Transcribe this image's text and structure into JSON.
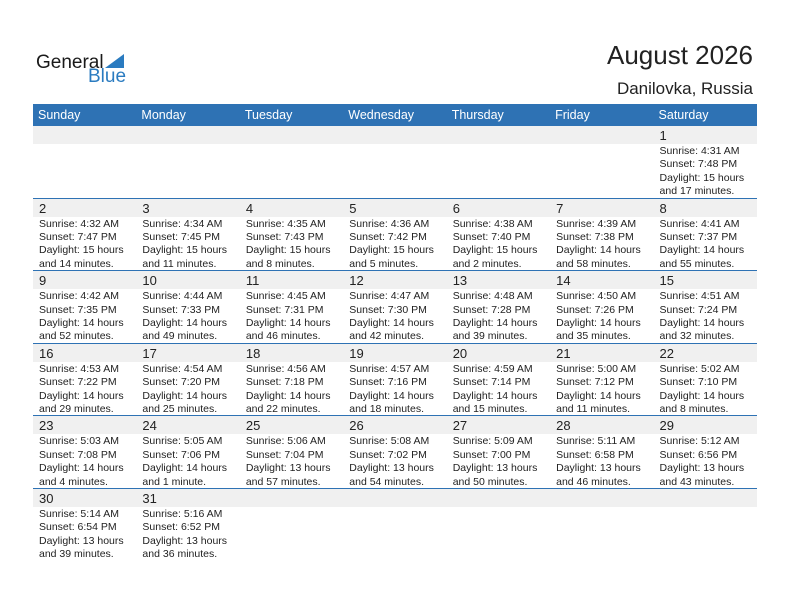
{
  "logo": {
    "general": "General",
    "blue": "Blue"
  },
  "title": "August 2026",
  "location": "Danilovka, Russia",
  "weekdays": [
    "Sunday",
    "Monday",
    "Tuesday",
    "Wednesday",
    "Thursday",
    "Friday",
    "Saturday"
  ],
  "weeks": [
    [
      null,
      null,
      null,
      null,
      null,
      null,
      {
        "day": "1",
        "sunrise": "Sunrise: 4:31 AM",
        "sunset": "Sunset: 7:48 PM",
        "daylight": "Daylight: 15 hours",
        "minutes": "and 17 minutes."
      }
    ],
    [
      {
        "day": "2",
        "sunrise": "Sunrise: 4:32 AM",
        "sunset": "Sunset: 7:47 PM",
        "daylight": "Daylight: 15 hours",
        "minutes": "and 14 minutes."
      },
      {
        "day": "3",
        "sunrise": "Sunrise: 4:34 AM",
        "sunset": "Sunset: 7:45 PM",
        "daylight": "Daylight: 15 hours",
        "minutes": "and 11 minutes."
      },
      {
        "day": "4",
        "sunrise": "Sunrise: 4:35 AM",
        "sunset": "Sunset: 7:43 PM",
        "daylight": "Daylight: 15 hours",
        "minutes": "and 8 minutes."
      },
      {
        "day": "5",
        "sunrise": "Sunrise: 4:36 AM",
        "sunset": "Sunset: 7:42 PM",
        "daylight": "Daylight: 15 hours",
        "minutes": "and 5 minutes."
      },
      {
        "day": "6",
        "sunrise": "Sunrise: 4:38 AM",
        "sunset": "Sunset: 7:40 PM",
        "daylight": "Daylight: 15 hours",
        "minutes": "and 2 minutes."
      },
      {
        "day": "7",
        "sunrise": "Sunrise: 4:39 AM",
        "sunset": "Sunset: 7:38 PM",
        "daylight": "Daylight: 14 hours",
        "minutes": "and 58 minutes."
      },
      {
        "day": "8",
        "sunrise": "Sunrise: 4:41 AM",
        "sunset": "Sunset: 7:37 PM",
        "daylight": "Daylight: 14 hours",
        "minutes": "and 55 minutes."
      }
    ],
    [
      {
        "day": "9",
        "sunrise": "Sunrise: 4:42 AM",
        "sunset": "Sunset: 7:35 PM",
        "daylight": "Daylight: 14 hours",
        "minutes": "and 52 minutes."
      },
      {
        "day": "10",
        "sunrise": "Sunrise: 4:44 AM",
        "sunset": "Sunset: 7:33 PM",
        "daylight": "Daylight: 14 hours",
        "minutes": "and 49 minutes."
      },
      {
        "day": "11",
        "sunrise": "Sunrise: 4:45 AM",
        "sunset": "Sunset: 7:31 PM",
        "daylight": "Daylight: 14 hours",
        "minutes": "and 46 minutes."
      },
      {
        "day": "12",
        "sunrise": "Sunrise: 4:47 AM",
        "sunset": "Sunset: 7:30 PM",
        "daylight": "Daylight: 14 hours",
        "minutes": "and 42 minutes."
      },
      {
        "day": "13",
        "sunrise": "Sunrise: 4:48 AM",
        "sunset": "Sunset: 7:28 PM",
        "daylight": "Daylight: 14 hours",
        "minutes": "and 39 minutes."
      },
      {
        "day": "14",
        "sunrise": "Sunrise: 4:50 AM",
        "sunset": "Sunset: 7:26 PM",
        "daylight": "Daylight: 14 hours",
        "minutes": "and 35 minutes."
      },
      {
        "day": "15",
        "sunrise": "Sunrise: 4:51 AM",
        "sunset": "Sunset: 7:24 PM",
        "daylight": "Daylight: 14 hours",
        "minutes": "and 32 minutes."
      }
    ],
    [
      {
        "day": "16",
        "sunrise": "Sunrise: 4:53 AM",
        "sunset": "Sunset: 7:22 PM",
        "daylight": "Daylight: 14 hours",
        "minutes": "and 29 minutes."
      },
      {
        "day": "17",
        "sunrise": "Sunrise: 4:54 AM",
        "sunset": "Sunset: 7:20 PM",
        "daylight": "Daylight: 14 hours",
        "minutes": "and 25 minutes."
      },
      {
        "day": "18",
        "sunrise": "Sunrise: 4:56 AM",
        "sunset": "Sunset: 7:18 PM",
        "daylight": "Daylight: 14 hours",
        "minutes": "and 22 minutes."
      },
      {
        "day": "19",
        "sunrise": "Sunrise: 4:57 AM",
        "sunset": "Sunset: 7:16 PM",
        "daylight": "Daylight: 14 hours",
        "minutes": "and 18 minutes."
      },
      {
        "day": "20",
        "sunrise": "Sunrise: 4:59 AM",
        "sunset": "Sunset: 7:14 PM",
        "daylight": "Daylight: 14 hours",
        "minutes": "and 15 minutes."
      },
      {
        "day": "21",
        "sunrise": "Sunrise: 5:00 AM",
        "sunset": "Sunset: 7:12 PM",
        "daylight": "Daylight: 14 hours",
        "minutes": "and 11 minutes."
      },
      {
        "day": "22",
        "sunrise": "Sunrise: 5:02 AM",
        "sunset": "Sunset: 7:10 PM",
        "daylight": "Daylight: 14 hours",
        "minutes": "and 8 minutes."
      }
    ],
    [
      {
        "day": "23",
        "sunrise": "Sunrise: 5:03 AM",
        "sunset": "Sunset: 7:08 PM",
        "daylight": "Daylight: 14 hours",
        "minutes": "and 4 minutes."
      },
      {
        "day": "24",
        "sunrise": "Sunrise: 5:05 AM",
        "sunset": "Sunset: 7:06 PM",
        "daylight": "Daylight: 14 hours",
        "minutes": "and 1 minute."
      },
      {
        "day": "25",
        "sunrise": "Sunrise: 5:06 AM",
        "sunset": "Sunset: 7:04 PM",
        "daylight": "Daylight: 13 hours",
        "minutes": "and 57 minutes."
      },
      {
        "day": "26",
        "sunrise": "Sunrise: 5:08 AM",
        "sunset": "Sunset: 7:02 PM",
        "daylight": "Daylight: 13 hours",
        "minutes": "and 54 minutes."
      },
      {
        "day": "27",
        "sunrise": "Sunrise: 5:09 AM",
        "sunset": "Sunset: 7:00 PM",
        "daylight": "Daylight: 13 hours",
        "minutes": "and 50 minutes."
      },
      {
        "day": "28",
        "sunrise": "Sunrise: 5:11 AM",
        "sunset": "Sunset: 6:58 PM",
        "daylight": "Daylight: 13 hours",
        "minutes": "and 46 minutes."
      },
      {
        "day": "29",
        "sunrise": "Sunrise: 5:12 AM",
        "sunset": "Sunset: 6:56 PM",
        "daylight": "Daylight: 13 hours",
        "minutes": "and 43 minutes."
      }
    ],
    [
      {
        "day": "30",
        "sunrise": "Sunrise: 5:14 AM",
        "sunset": "Sunset: 6:54 PM",
        "daylight": "Daylight: 13 hours",
        "minutes": "and 39 minutes."
      },
      {
        "day": "31",
        "sunrise": "Sunrise: 5:16 AM",
        "sunset": "Sunset: 6:52 PM",
        "daylight": "Daylight: 13 hours",
        "minutes": "and 36 minutes."
      },
      null,
      null,
      null,
      null,
      null
    ]
  ]
}
